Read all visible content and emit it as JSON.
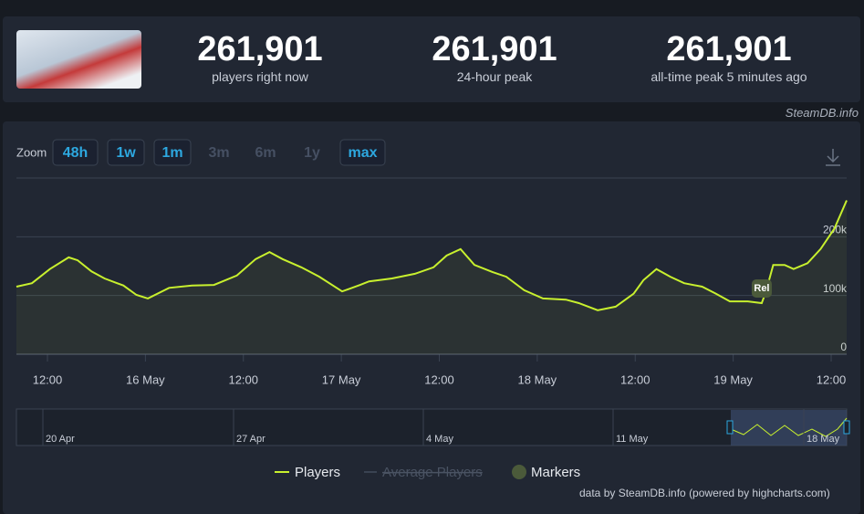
{
  "header": {
    "stats": [
      {
        "value": "261,901",
        "label": "players right now"
      },
      {
        "value": "261,901",
        "label": "24-hour peak"
      },
      {
        "value": "261,901",
        "label": "all-time peak 5 minutes ago"
      }
    ],
    "credit": "SteamDB.info"
  },
  "zoom": {
    "label": "Zoom",
    "buttons": [
      {
        "text": "48h",
        "enabled": true
      },
      {
        "text": "1w",
        "enabled": true
      },
      {
        "text": "1m",
        "enabled": true
      },
      {
        "text": "3m",
        "enabled": false
      },
      {
        "text": "6m",
        "enabled": false
      },
      {
        "text": "1y",
        "enabled": false
      },
      {
        "text": "max",
        "enabled": true
      }
    ]
  },
  "chart_data": {
    "type": "line",
    "x": [
      8.2,
      10.1,
      12.3,
      14.6,
      15.7,
      17.4,
      19.0,
      21.3,
      22.9,
      24.3,
      26.9,
      29.7,
      32.4,
      35.2,
      37.5,
      39.2,
      40.8,
      43.1,
      45.3,
      48.1,
      50.3,
      51.4,
      54.2,
      57.0,
      59.3,
      60.9,
      62.6,
      64.3,
      66.5,
      68.2,
      70.4,
      72.7,
      75.5,
      77.1,
      79.4,
      81.6,
      83.8,
      85.0,
      86.6,
      88.3,
      90.0,
      92.2,
      93.9,
      95.6,
      97.8,
      99.5,
      100.0,
      100.9,
      102.3,
      103.4,
      105.1,
      106.7,
      108.4,
      109.9
    ],
    "series": [
      {
        "name": "Players",
        "color": "#c8f02e",
        "values": [
          115000,
          121000,
          145000,
          165000,
          160000,
          141000,
          129000,
          117000,
          101000,
          95000,
          113000,
          117000,
          118000,
          134000,
          162000,
          174000,
          162000,
          148000,
          132000,
          107000,
          118000,
          124000,
          129000,
          137000,
          148000,
          168000,
          179000,
          152000,
          140000,
          132000,
          109000,
          95000,
          93000,
          87000,
          75000,
          81000,
          103000,
          126000,
          145000,
          132000,
          121000,
          115000,
          103000,
          90000,
          90000,
          87000,
          106000,
          152000,
          152000,
          145000,
          155000,
          179000,
          214000,
          261901
        ]
      }
    ],
    "xlim": [
      8.2,
      109.9
    ],
    "xticks": [
      {
        "value": 12,
        "label": "12:00"
      },
      {
        "value": 24,
        "label": "16 May"
      },
      {
        "value": 36,
        "label": "12:00"
      },
      {
        "value": 48,
        "label": "17 May"
      },
      {
        "value": 60,
        "label": "12:00"
      },
      {
        "value": 72,
        "label": "18 May"
      },
      {
        "value": 84,
        "label": "12:00"
      },
      {
        "value": 96,
        "label": "19 May"
      },
      {
        "value": 108,
        "label": "12:00"
      }
    ],
    "ylim": [
      0,
      300000
    ],
    "yticks": [
      0,
      {
        "value": 100000,
        "label": "100k"
      },
      {
        "value": 200000,
        "label": "200k"
      }
    ],
    "grid": true,
    "annotations": [
      {
        "text": "Rel",
        "x": 99.5,
        "y": 112000
      }
    ],
    "navigator_labels": [
      "20 Apr",
      "27 Apr",
      "4 May",
      "11 May",
      "18 May"
    ],
    "legend_extra": [
      {
        "name": "Average Players",
        "hidden": true
      },
      {
        "name": "Markers",
        "color": "#4b5a3a"
      }
    ],
    "source": "data by SteamDB.info (powered by highcharts.com)"
  }
}
